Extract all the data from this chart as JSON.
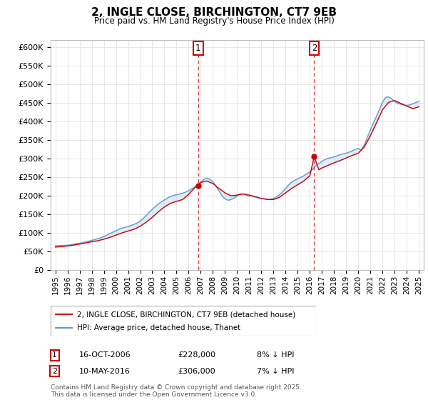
{
  "title": "2, INGLE CLOSE, BIRCHINGTON, CT7 9EB",
  "subtitle": "Price paid vs. HM Land Registry's House Price Index (HPI)",
  "ylim": [
    0,
    620000
  ],
  "yticks": [
    0,
    50000,
    100000,
    150000,
    200000,
    250000,
    300000,
    350000,
    400000,
    450000,
    500000,
    550000,
    600000
  ],
  "xlim_start": 1994.6,
  "xlim_end": 2025.4,
  "legend_label_red": "2, INGLE CLOSE, BIRCHINGTON, CT7 9EB (detached house)",
  "legend_label_blue": "HPI: Average price, detached house, Thanet",
  "copyright_text": "Contains HM Land Registry data © Crown copyright and database right 2025.\nThis data is licensed under the Open Government Licence v3.0.",
  "sale1_label": "1",
  "sale1_date": "16-OCT-2006",
  "sale1_price": "£228,000",
  "sale1_hpi": "8% ↓ HPI",
  "sale1_x": 2006.79,
  "sale1_y": 228000,
  "sale2_label": "2",
  "sale2_date": "10-MAY-2016",
  "sale2_price": "£306,000",
  "sale2_hpi": "7% ↓ HPI",
  "sale2_x": 2016.36,
  "sale2_y": 306000,
  "line_color_red": "#cc0000",
  "line_color_blue": "#6699cc",
  "fill_color_blue": "#aaccee",
  "marker_dashed_color": "#cc0000",
  "box_border_color": "#cc0000",
  "grid_color": "#dddddd",
  "background_color": "#ffffff",
  "hpi_data_x": [
    1995.0,
    1995.25,
    1995.5,
    1995.75,
    1996.0,
    1996.25,
    1996.5,
    1996.75,
    1997.0,
    1997.25,
    1997.5,
    1997.75,
    1998.0,
    1998.25,
    1998.5,
    1998.75,
    1999.0,
    1999.25,
    1999.5,
    1999.75,
    2000.0,
    2000.25,
    2000.5,
    2000.75,
    2001.0,
    2001.25,
    2001.5,
    2001.75,
    2002.0,
    2002.25,
    2002.5,
    2002.75,
    2003.0,
    2003.25,
    2003.5,
    2003.75,
    2004.0,
    2004.25,
    2004.5,
    2004.75,
    2005.0,
    2005.25,
    2005.5,
    2005.75,
    2006.0,
    2006.25,
    2006.5,
    2006.75,
    2007.0,
    2007.25,
    2007.5,
    2007.75,
    2008.0,
    2008.25,
    2008.5,
    2008.75,
    2009.0,
    2009.25,
    2009.5,
    2009.75,
    2010.0,
    2010.25,
    2010.5,
    2010.75,
    2011.0,
    2011.25,
    2011.5,
    2011.75,
    2012.0,
    2012.25,
    2012.5,
    2012.75,
    2013.0,
    2013.25,
    2013.5,
    2013.75,
    2014.0,
    2014.25,
    2014.5,
    2014.75,
    2015.0,
    2015.25,
    2015.5,
    2015.75,
    2016.0,
    2016.25,
    2016.5,
    2016.75,
    2017.0,
    2017.25,
    2017.5,
    2017.75,
    2018.0,
    2018.25,
    2018.5,
    2018.75,
    2019.0,
    2019.25,
    2019.5,
    2019.75,
    2020.0,
    2020.25,
    2020.5,
    2020.75,
    2021.0,
    2021.25,
    2021.5,
    2021.75,
    2022.0,
    2022.25,
    2022.5,
    2022.75,
    2023.0,
    2023.25,
    2023.5,
    2023.75,
    2024.0,
    2024.25,
    2024.5,
    2025.0
  ],
  "hpi_data_y": [
    65000,
    65500,
    66000,
    66500,
    67000,
    68000,
    69500,
    71000,
    72000,
    74000,
    76000,
    78000,
    80000,
    82000,
    84500,
    87000,
    90000,
    94000,
    98000,
    102000,
    106000,
    110000,
    113000,
    115000,
    117000,
    120000,
    123000,
    127000,
    132000,
    139000,
    147000,
    156000,
    164000,
    171000,
    178000,
    184000,
    189000,
    194000,
    198000,
    201000,
    203000,
    205000,
    207000,
    210000,
    214000,
    219000,
    224000,
    230000,
    237000,
    244000,
    248000,
    245000,
    238000,
    227000,
    213000,
    200000,
    192000,
    188000,
    190000,
    194000,
    200000,
    205000,
    205000,
    202000,
    199000,
    200000,
    198000,
    196000,
    193000,
    192000,
    191000,
    191000,
    193000,
    197000,
    203000,
    211000,
    220000,
    229000,
    237000,
    242000,
    246000,
    250000,
    254000,
    259000,
    265000,
    272000,
    281000,
    287000,
    293000,
    298000,
    301000,
    303000,
    305000,
    308000,
    311000,
    313000,
    315000,
    318000,
    321000,
    325000,
    328000,
    323000,
    338000,
    358000,
    378000,
    397000,
    414000,
    433000,
    453000,
    465000,
    467000,
    462000,
    454000,
    449000,
    447000,
    445000,
    444000,
    445000,
    448000,
    455000
  ],
  "price_paid_x": [
    1995.0,
    1995.5,
    1996.0,
    1996.5,
    1997.0,
    1997.5,
    1998.0,
    1998.5,
    1999.0,
    1999.5,
    2000.0,
    2000.5,
    2001.0,
    2001.5,
    2002.0,
    2002.5,
    2003.0,
    2003.5,
    2004.0,
    2004.5,
    2005.0,
    2005.5,
    2006.0,
    2006.5,
    2006.79,
    2007.0,
    2007.5,
    2008.0,
    2008.5,
    2009.0,
    2009.5,
    2010.0,
    2010.5,
    2011.0,
    2011.5,
    2012.0,
    2012.5,
    2013.0,
    2013.5,
    2014.0,
    2014.5,
    2015.0,
    2015.5,
    2016.0,
    2016.36,
    2016.75,
    2017.0,
    2017.5,
    2018.0,
    2018.5,
    2019.0,
    2019.5,
    2020.0,
    2020.5,
    2021.0,
    2021.5,
    2022.0,
    2022.5,
    2023.0,
    2023.5,
    2024.0,
    2024.5,
    2025.0
  ],
  "price_paid_y": [
    62000,
    63000,
    65000,
    67000,
    70000,
    73000,
    76000,
    79000,
    83000,
    88000,
    94000,
    100000,
    105000,
    110000,
    118000,
    129000,
    142000,
    157000,
    170000,
    180000,
    185000,
    190000,
    204000,
    222000,
    228000,
    236000,
    240000,
    233000,
    220000,
    208000,
    200000,
    202000,
    205000,
    202000,
    197000,
    193000,
    190000,
    190000,
    196000,
    208000,
    220000,
    230000,
    240000,
    254000,
    306000,
    270000,
    275000,
    282000,
    289000,
    295000,
    302000,
    309000,
    315000,
    332000,
    362000,
    397000,
    432000,
    452000,
    457000,
    449000,
    442000,
    435000,
    440000
  ]
}
